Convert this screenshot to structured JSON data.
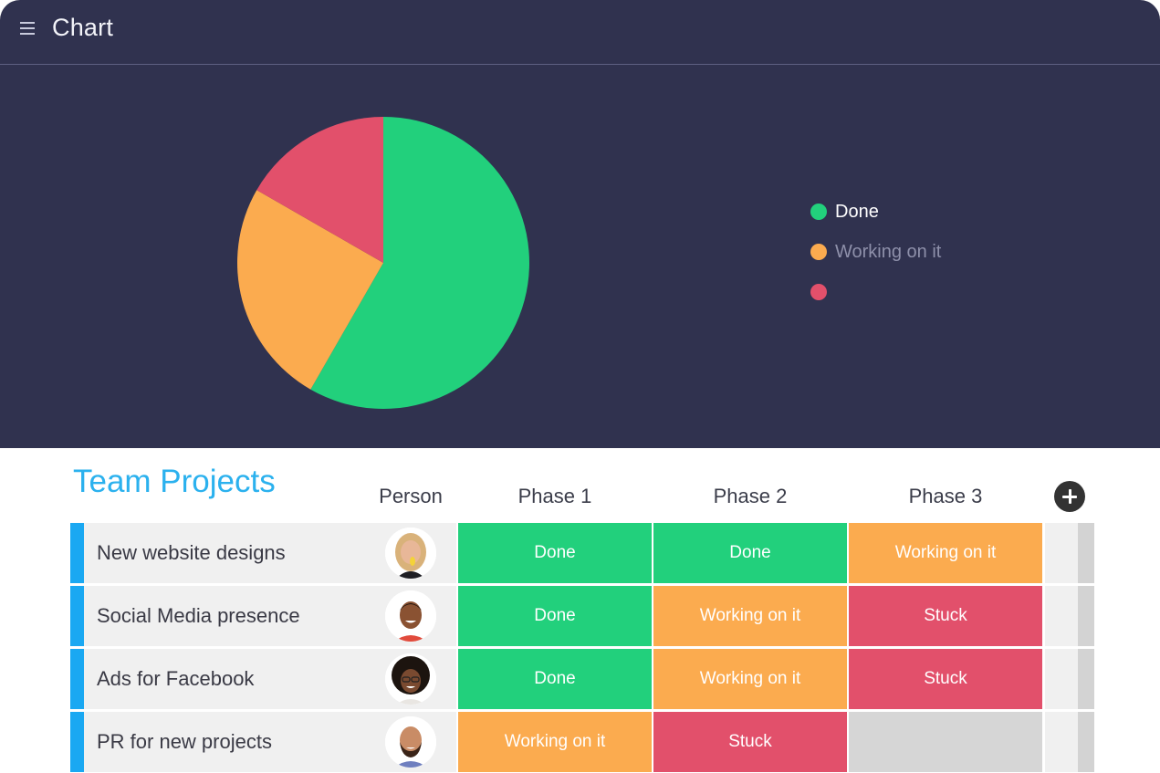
{
  "header": {
    "title": "Chart",
    "menu_icon": "hamburger-menu-icon"
  },
  "chart_data": {
    "type": "pie",
    "slices": [
      {
        "label": "Done",
        "value": 58.3,
        "color": "#22d07c"
      },
      {
        "label": "Working on it",
        "value": 25,
        "color": "#fbab4f"
      },
      {
        "label": "",
        "value": 16.7,
        "color": "#e2506b"
      }
    ],
    "legend": "right"
  },
  "legend": {
    "items": [
      {
        "label": "Done",
        "color": "#22d07c",
        "state": "active"
      },
      {
        "label": "Working on it",
        "color": "#fbab4f",
        "state": "dim"
      },
      {
        "label": "",
        "color": "#e2506b",
        "state": "dim"
      }
    ]
  },
  "board": {
    "title": "Team Projects",
    "columns": {
      "person": "Person",
      "phase1": "Phase 1",
      "phase2": "Phase 2",
      "phase3": "Phase 3"
    },
    "add_column_icon": "plus-circle-icon",
    "rows": [
      {
        "name": "New website designs",
        "person": "woman-blonde-avatar",
        "phase1": "Done",
        "phase2": "Done",
        "phase3": "Working on it"
      },
      {
        "name": "Social Media presence",
        "person": "man-smiling-avatar",
        "phase1": "Done",
        "phase2": "Working on it",
        "phase3": "Stuck"
      },
      {
        "name": "Ads for Facebook",
        "person": "woman-curly-hair-avatar",
        "phase1": "Done",
        "phase2": "Working on it",
        "phase3": "Stuck"
      },
      {
        "name": "PR for new projects",
        "person": "man-beard-avatar",
        "phase1": "Working on it",
        "phase2": "Stuck",
        "phase3": ""
      }
    ]
  },
  "colors": {
    "done": "#22d07c",
    "working": "#fbab4f",
    "stuck": "#e2506b",
    "empty": "#d6d6d6",
    "accent": "#1aa8f2",
    "header_bg": "#30324f"
  }
}
